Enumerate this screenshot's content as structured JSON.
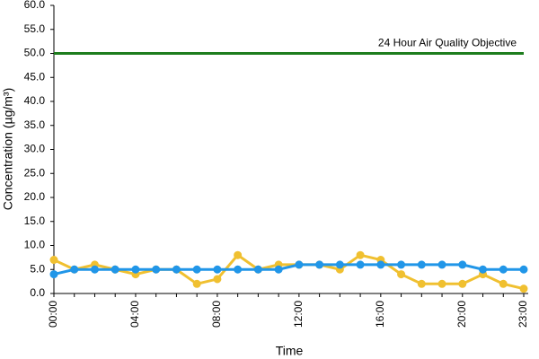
{
  "chart_data": {
    "type": "line",
    "x_label": "Time",
    "y_label": "Concentration (µg/m³)",
    "categories": [
      "00:00",
      null,
      null,
      null,
      "04:00",
      null,
      null,
      null,
      "08:00",
      null,
      null,
      null,
      "12:00",
      null,
      null,
      null,
      "16:00",
      null,
      null,
      null,
      "20:00",
      null,
      null,
      "23:00"
    ],
    "series": [
      {
        "color": "#f0c030",
        "values": [
          7,
          5,
          6,
          5,
          4,
          5,
          5,
          2,
          3,
          8,
          5,
          6,
          6,
          6,
          5,
          8,
          7,
          4,
          2,
          2,
          2,
          4,
          2,
          1
        ]
      },
      {
        "color": "#2196e8",
        "values": [
          4,
          5,
          5,
          5,
          5,
          5,
          5,
          5,
          5,
          5,
          5,
          5,
          6,
          6,
          6,
          6,
          6,
          6,
          6,
          6,
          6,
          5,
          5,
          5
        ]
      }
    ],
    "reference_line": {
      "value": 50,
      "label": "24 Hour Air Quality Objective",
      "color": "#1e7d1e"
    },
    "ylim": [
      0,
      60
    ],
    "yticks": [
      {
        "value": 0,
        "label": "0.0"
      },
      {
        "value": 5,
        "label": "5.0"
      },
      {
        "value": 10,
        "label": "10.0"
      },
      {
        "value": 15,
        "label": "15.0"
      },
      {
        "value": 20,
        "label": "20.0"
      },
      {
        "value": 25,
        "label": "25.0"
      },
      {
        "value": 30,
        "label": "30.0"
      },
      {
        "value": 35,
        "label": "35.0"
      },
      {
        "value": 40,
        "label": "40.0"
      },
      {
        "value": 45,
        "label": "45.0"
      },
      {
        "value": 50,
        "label": "50.0"
      },
      {
        "value": 55,
        "label": "55.0"
      },
      {
        "value": 60,
        "label": "60.0"
      }
    ],
    "grid": false
  }
}
